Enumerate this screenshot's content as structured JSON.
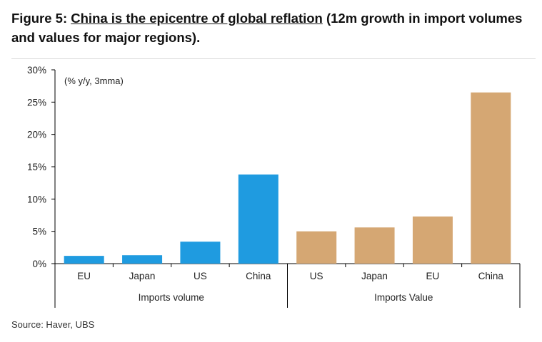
{
  "title": {
    "figure_label": "Figure 5:",
    "headline": "China is the epicentre of global reflation",
    "subtitle": "(12m growth in import volumes and values for major regions)."
  },
  "source": "Source:  Haver, UBS",
  "chart_data": {
    "type": "bar",
    "annotation": "(% y/y, 3mma)",
    "ylim": [
      0,
      30
    ],
    "yticks": [
      0,
      5,
      10,
      15,
      20,
      25,
      30
    ],
    "ytick_labels": [
      "0%",
      "5%",
      "10%",
      "15%",
      "20%",
      "25%",
      "30%"
    ],
    "groups": [
      {
        "name": "Imports volume",
        "color": "#1f9be0",
        "categories": [
          "EU",
          "Japan",
          "US",
          "China"
        ],
        "values": [
          1.2,
          1.3,
          3.4,
          13.8
        ]
      },
      {
        "name": "Imports Value",
        "color": "#d5a773",
        "categories": [
          "US",
          "Japan",
          "EU",
          "China"
        ],
        "values": [
          5.0,
          5.6,
          7.3,
          26.5
        ]
      }
    ]
  }
}
